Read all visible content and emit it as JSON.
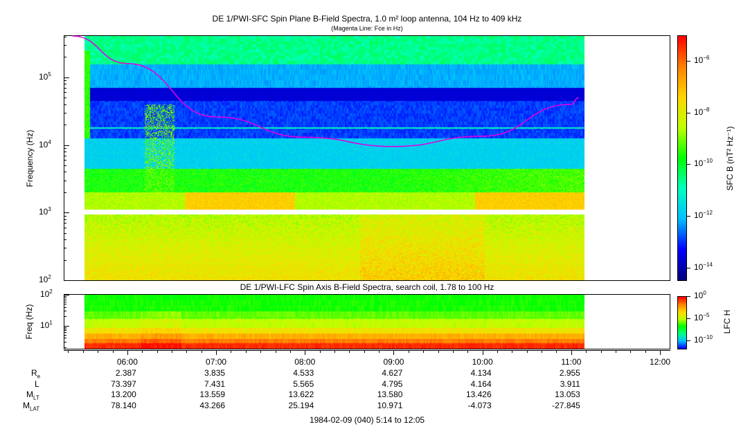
{
  "chart_data": [
    {
      "type": "heatmap",
      "title": "DE 1/PWI-SFC  Spin Plane B-Field Spectra, 1.0 m² loop antenna, 104 Hz to 409 kHz",
      "subtitle": "(Magenta Line: Fce in Hz)",
      "ylabel": "Frequency (Hz)",
      "yscale": "log",
      "ylim": [
        100,
        409000
      ],
      "yticks": [
        "10^2",
        "10^3",
        "10^4",
        "10^5"
      ],
      "colorbar": {
        "label": "SFC B (nT² Hz⁻¹)",
        "scale": "log",
        "range": [
          3e-15,
          1e-05
        ],
        "ticks": [
          "10^-6",
          "10^-8",
          "10^-10",
          "10^-12",
          "10^-14"
        ],
        "colors": [
          "#00007f",
          "#0000ff",
          "#00bfff",
          "#00ffbf",
          "#00ff00",
          "#bfff00",
          "#ffd700",
          "#ff8000",
          "#ff0000"
        ]
      },
      "data_extent_utc": [
        "05:14",
        "12:05"
      ],
      "overlay_line": {
        "name": "Fce in Hz",
        "color": "#e000e0",
        "points": [
          [
            "05:23",
            409000
          ],
          [
            "06:00",
            160000
          ],
          [
            "07:00",
            26000
          ],
          [
            "08:00",
            13000
          ],
          [
            "09:00",
            9500
          ],
          [
            "10:00",
            13500
          ],
          [
            "11:00",
            40000
          ],
          [
            "11:05",
            50000
          ]
        ]
      }
    },
    {
      "type": "heatmap",
      "title": "DE 1/PWI-LFC  Spin Axis B-Field Spectra, search coil, 1.78 to 100 Hz",
      "ylabel": "Freq (Hz)",
      "yscale": "log",
      "ylim": [
        1.78,
        100
      ],
      "yticks": [
        "10^2",
        "10^1"
      ],
      "colorbar": {
        "label": "LFC H",
        "scale": "log",
        "range": [
          1e-12,
          1
        ],
        "ticks": [
          "10^0",
          "10^-5",
          "10^-10"
        ],
        "colors": [
          "#0000ff",
          "#00bfff",
          "#00ff80",
          "#00ff00",
          "#bfff00",
          "#ffd700",
          "#ff8000",
          "#ff0000"
        ]
      },
      "data_extent_utc": [
        "05:14",
        "12:05"
      ]
    }
  ],
  "xaxis": {
    "ticks": [
      "06:00",
      "07:00",
      "08:00",
      "09:00",
      "10:00",
      "11:00",
      "12:00"
    ],
    "range_utc": [
      "05:17",
      "12:07"
    ]
  },
  "ephemeris": {
    "labels": [
      "R",
      "L",
      "M",
      "M"
    ],
    "label_subscripts": [
      "e",
      "",
      "LT",
      "LAT"
    ],
    "rows": [
      [
        "2.387",
        "3.835",
        "4.533",
        "4.627",
        "4.134",
        "2.955"
      ],
      [
        "73.397",
        "7.431",
        "5.565",
        "4.795",
        "4.164",
        "3.911"
      ],
      [
        "13.200",
        "13.559",
        "13.622",
        "13.580",
        "13.426",
        "13.053"
      ],
      [
        "78.140",
        "43.266",
        "25.194",
        "10.971",
        "-4.073",
        "-27.845"
      ]
    ]
  },
  "footer": "1984-02-09 (040) 5:14 to 12:05"
}
